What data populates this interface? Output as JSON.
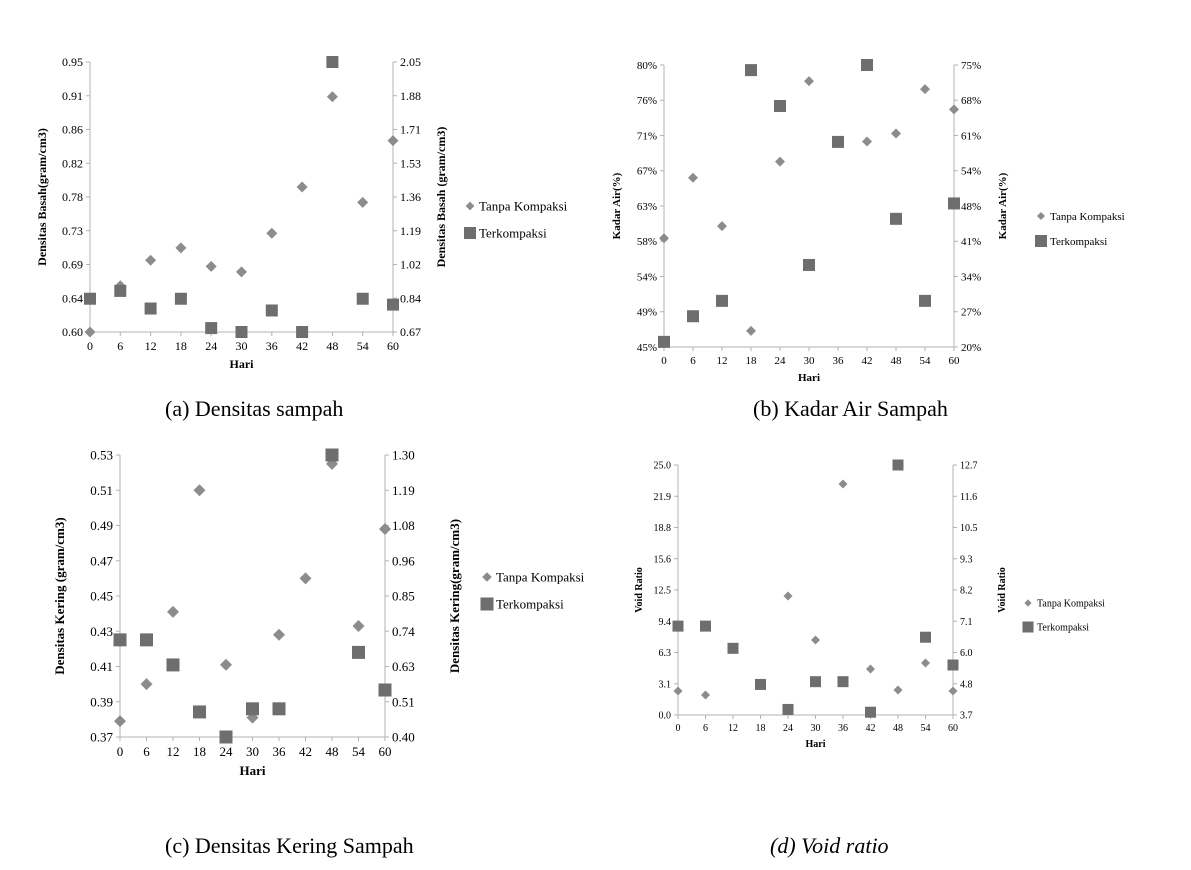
{
  "figures": [
    {
      "id": "a",
      "caption": "(a)  Densitas sampah"
    },
    {
      "id": "b",
      "caption": "(b) Kadar Air Sampah"
    },
    {
      "id": "c",
      "caption": "(c)  Densitas Kering Sampah"
    },
    {
      "id": "d",
      "caption": "(d) Void ratio"
    }
  ],
  "chart_data": [
    {
      "type": "scatter",
      "xlabel": "Hari",
      "ylabel": "Densitas Basah(gram/cm3)",
      "y2label": "Densitas Basah (gram/cm3)",
      "x_ticks": [
        "0",
        "6",
        "12",
        "18",
        "24",
        "30",
        "36",
        "42",
        "48",
        "54",
        "60"
      ],
      "xlim": [
        0,
        60
      ],
      "y_ticks": [
        "0.60",
        "0.64",
        "0.69",
        "0.73",
        "0.78",
        "0.82",
        "0.86",
        "0.91",
        "0.95"
      ],
      "ylim": [
        0.6,
        0.95
      ],
      "y2_ticks": [
        "0.67",
        "0.84",
        "1.02",
        "1.19",
        "1.36",
        "1.53",
        "1.71",
        "1.88",
        "2.05"
      ],
      "y2lim": [
        0.67,
        2.05
      ],
      "legend_position": "right",
      "series": [
        {
          "name": "Tanpa Kompaksi",
          "marker": "diamond",
          "axis": "left",
          "x": [
            0,
            6,
            12,
            18,
            24,
            30,
            36,
            42,
            48,
            54,
            60
          ],
          "y": [
            0.6,
            0.66,
            0.693,
            0.709,
            0.685,
            0.678,
            0.728,
            0.788,
            0.905,
            0.768,
            0.848
          ]
        },
        {
          "name": "Terkompaksi",
          "marker": "square",
          "axis": "right",
          "x": [
            0,
            6,
            12,
            18,
            24,
            30,
            36,
            42,
            48,
            54,
            60
          ],
          "y": [
            0.84,
            0.88,
            0.79,
            0.84,
            0.69,
            0.67,
            0.78,
            0.67,
            2.05,
            0.84,
            0.81
          ]
        }
      ]
    },
    {
      "type": "scatter",
      "xlabel": "Hari",
      "ylabel": "Kadar Air(%)",
      "y2label": "Kadar Air(%)",
      "x_ticks": [
        "0",
        "6",
        "12",
        "18",
        "24",
        "30",
        "36",
        "42",
        "48",
        "54",
        "60"
      ],
      "xlim": [
        0,
        60
      ],
      "y_ticks": [
        "45%",
        "49%",
        "54%",
        "58%",
        "63%",
        "67%",
        "71%",
        "76%",
        "80%"
      ],
      "ylim": [
        45,
        80
      ],
      "y2_ticks": [
        "20%",
        "27%",
        "34%",
        "41%",
        "48%",
        "54%",
        "61%",
        "68%",
        "75%"
      ],
      "y2lim": [
        20,
        75
      ],
      "legend_position": "right",
      "series": [
        {
          "name": "Tanpa Kompaksi",
          "marker": "diamond",
          "axis": "left",
          "x": [
            0,
            6,
            12,
            18,
            24,
            30,
            36,
            42,
            48,
            54,
            60
          ],
          "y": [
            58.5,
            66,
            60,
            47,
            68,
            78,
            70.5,
            70.5,
            71.5,
            77,
            74.5
          ]
        },
        {
          "name": "Terkompaksi",
          "marker": "square",
          "axis": "right",
          "x": [
            0,
            6,
            12,
            18,
            24,
            30,
            36,
            42,
            48,
            54,
            60
          ],
          "y": [
            21,
            26,
            29,
            74,
            67,
            36,
            60,
            75,
            45,
            29,
            48
          ]
        }
      ]
    },
    {
      "type": "scatter",
      "xlabel": "Hari",
      "ylabel": "Densitas Kering (gram/cm3)",
      "y2label": "Densitas Kering(gram/cm3)",
      "x_ticks": [
        "0",
        "6",
        "12",
        "18",
        "24",
        "30",
        "36",
        "42",
        "48",
        "54",
        "60"
      ],
      "xlim": [
        0,
        60
      ],
      "y_ticks": [
        "0.37",
        "0.39",
        "0.41",
        "0.43",
        "0.45",
        "0.47",
        "0.49",
        "0.51",
        "0.53"
      ],
      "ylim": [
        0.37,
        0.53
      ],
      "y2_ticks": [
        "0.40",
        "0.51",
        "0.63",
        "0.74",
        "0.85",
        "0.96",
        "1.08",
        "1.19",
        "1.30"
      ],
      "y2lim": [
        0.4,
        1.3
      ],
      "legend_position": "right",
      "series": [
        {
          "name": "Tanpa Kompaksi",
          "marker": "diamond",
          "axis": "left",
          "x": [
            0,
            6,
            12,
            18,
            24,
            30,
            36,
            42,
            48,
            54,
            60
          ],
          "y": [
            0.379,
            0.4,
            0.441,
            0.51,
            0.411,
            0.381,
            0.428,
            0.46,
            0.525,
            0.433,
            0.488
          ]
        },
        {
          "name": "Terkompaksi",
          "marker": "square",
          "axis": "right",
          "x": [
            0,
            6,
            12,
            18,
            24,
            30,
            36,
            42,
            48,
            54,
            60
          ],
          "y": [
            0.71,
            0.71,
            0.63,
            0.48,
            0.4,
            0.49,
            0.49,
            null,
            1.3,
            0.67,
            0.55
          ]
        }
      ]
    },
    {
      "type": "scatter",
      "xlabel": "Hari",
      "ylabel": "Void Ratio",
      "y2label": "Void Ratio",
      "x_ticks": [
        "0",
        "6",
        "12",
        "18",
        "24",
        "30",
        "36",
        "42",
        "48",
        "54",
        "60"
      ],
      "xlim": [
        0,
        60
      ],
      "y_ticks": [
        "0.0",
        "3.1",
        "6.3",
        "9.4",
        "12.5",
        "15.6",
        "18.8",
        "21.9",
        "25.0"
      ],
      "ylim": [
        0,
        25
      ],
      "y2_ticks": [
        "3.7",
        "4.8",
        "6.0",
        "7.1",
        "8.2",
        "9.3",
        "10.5",
        "11.6",
        "12.7"
      ],
      "y2lim": [
        3.7,
        12.7
      ],
      "legend_position": "right",
      "series": [
        {
          "name": "Tanpa Kompaksi",
          "marker": "diamond",
          "axis": "left",
          "x": [
            0,
            6,
            12,
            18,
            24,
            30,
            36,
            42,
            48,
            54,
            60
          ],
          "y": [
            2.4,
            2.0,
            6.6,
            3.0,
            11.9,
            7.5,
            23.1,
            4.6,
            2.5,
            5.2,
            2.4
          ]
        },
        {
          "name": "Terkompaksi",
          "marker": "square",
          "axis": "right",
          "x": [
            0,
            6,
            12,
            18,
            24,
            30,
            36,
            42,
            48,
            54,
            60
          ],
          "y": [
            6.9,
            6.9,
            6.1,
            4.8,
            3.9,
            4.9,
            4.9,
            3.8,
            12.7,
            6.5,
            5.5
          ]
        }
      ]
    }
  ],
  "style": {
    "diamond_color": "#8c8c8c",
    "square_color": "#6e6e6e",
    "axis_color": "#b3b3b3",
    "text_color": "#000000"
  }
}
